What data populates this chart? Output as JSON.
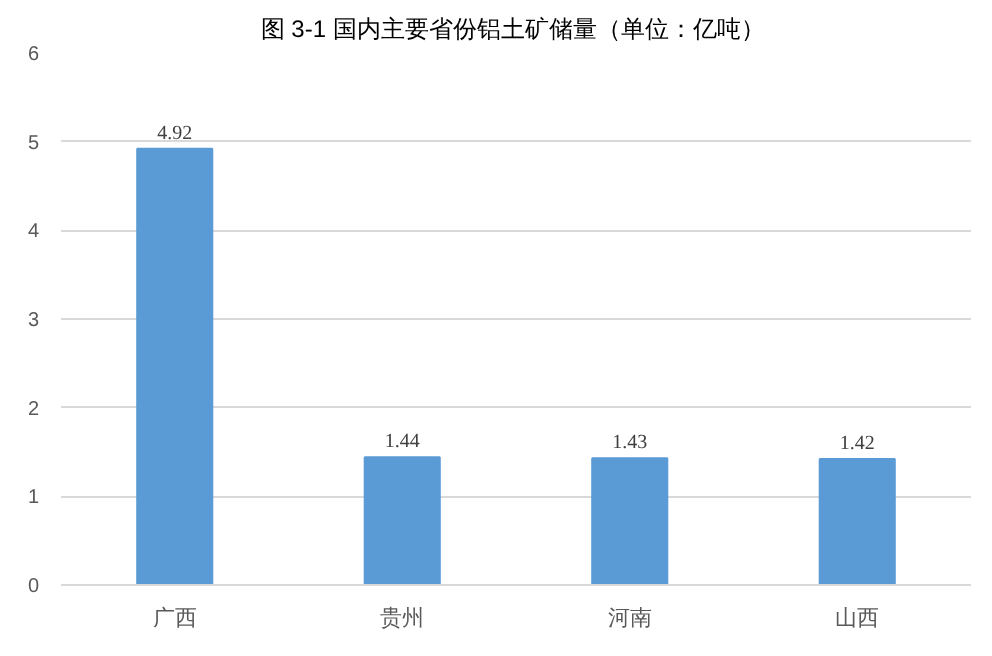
{
  "chart_data": {
    "type": "bar",
    "title": "图 3-1  国内主要省份铝土矿储量（单位：亿吨）",
    "categories": [
      "广西",
      "贵州",
      "河南",
      "山西"
    ],
    "values": [
      4.92,
      1.44,
      1.43,
      1.42
    ],
    "color": "#5b9bd5",
    "ylim": [
      0,
      6
    ],
    "yticks": [
      0,
      1,
      2,
      3,
      4,
      5,
      6
    ],
    "grid": "y",
    "data_labels": true
  }
}
